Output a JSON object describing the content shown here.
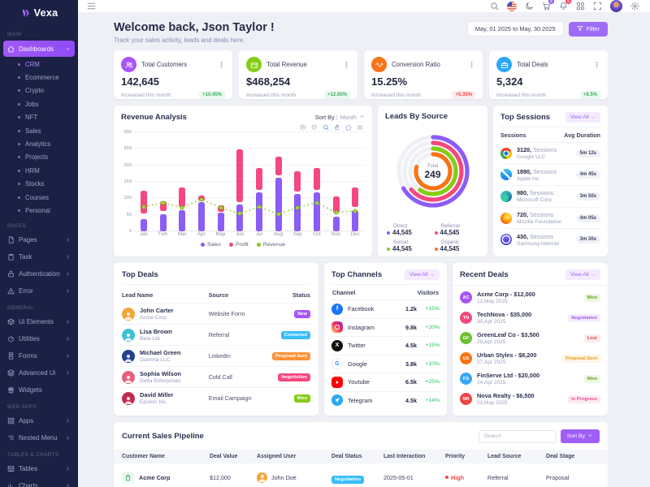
{
  "brand": {
    "name": "Vexa"
  },
  "sidebar": {
    "sections": [
      {
        "label": "MAIN",
        "items": [
          {
            "label": "Dashboards",
            "icon": "home",
            "active": true,
            "chevron": "down",
            "children": [
              "CRM",
              "Ecommerce",
              "Crypto",
              "Jobs",
              "NFT",
              "Sales",
              "Analytics",
              "Projects",
              "HRM",
              "Stocks",
              "Courses",
              "Personal"
            ],
            "active_child": "CRM"
          }
        ]
      },
      {
        "label": "PAGES",
        "items": [
          {
            "label": "Pages",
            "icon": "file",
            "chevron": "right"
          },
          {
            "label": "Task",
            "icon": "clipboard",
            "chevron": "right"
          },
          {
            "label": "Authentication",
            "icon": "lock",
            "chevron": "right"
          },
          {
            "label": "Error",
            "icon": "alert",
            "chevron": "right"
          }
        ]
      },
      {
        "label": "GENERAL",
        "items": [
          {
            "label": "Ui Elements",
            "icon": "box",
            "chevron": "right"
          },
          {
            "label": "Utilities",
            "icon": "gauge",
            "chevron": "right"
          },
          {
            "label": "Forms",
            "icon": "form",
            "chevron": "right"
          },
          {
            "label": "Advanced Ui",
            "icon": "layers",
            "chevron": "right"
          },
          {
            "label": "Widgets",
            "icon": "gift"
          }
        ]
      },
      {
        "label": "WEB APPS",
        "items": [
          {
            "label": "Apps",
            "icon": "apps",
            "chevron": "right"
          },
          {
            "label": "Nested Menu",
            "icon": "nested",
            "chevron": "right"
          }
        ]
      },
      {
        "label": "TABLES & CHARTS",
        "items": [
          {
            "label": "Tables",
            "icon": "table",
            "chevron": "right"
          },
          {
            "label": "Charts",
            "icon": "chart",
            "chevron": "right"
          }
        ]
      }
    ]
  },
  "topbar": {
    "cart_badge": "5",
    "bell_badge": "5"
  },
  "welcome": {
    "title": "Welcome back, Json Taylor !",
    "subtitle": "Track your sales activity, leads and deals here.",
    "date_range": "May, 01 2025 to May, 30 2025",
    "filter_label": "Filter"
  },
  "stats": [
    {
      "title": "Total Customers",
      "value": "142,645",
      "note": "Increased this month",
      "badge": "+10.45%",
      "trend": "up",
      "icon": "users",
      "color": "#a855f7"
    },
    {
      "title": "Total Revenue",
      "value": "$468,254",
      "note": "Increased this month",
      "badge": "+12.65%",
      "trend": "up",
      "icon": "wallet",
      "color": "#84cc16"
    },
    {
      "title": "Conversion Ratio",
      "value": "15.25%",
      "note": "Increased this month",
      "badge": "+5.35%",
      "trend": "down",
      "icon": "wave",
      "color": "#f97316"
    },
    {
      "title": "Total Deals",
      "value": "5,324",
      "note": "Increased this month",
      "badge": "+8.5%",
      "trend": "up",
      "icon": "briefcase",
      "color": "#2aa7f8"
    }
  ],
  "chart_data": [
    {
      "type": "bar",
      "title": "Revenue Analysis",
      "sort_by_label": "Sort By :",
      "sort_by_value": "Month",
      "categories": [
        "Jan",
        "Feb",
        "Mar",
        "Apr",
        "May",
        "Jun",
        "Jul",
        "Aug",
        "Sep",
        "Oct",
        "Nov",
        "Dec"
      ],
      "series": [
        {
          "name": "Sales",
          "type": "bar",
          "color": "#8b5cf6",
          "values": [
            38,
            52,
            65,
            88,
            57,
            82,
            118,
            162,
            112,
            118,
            45,
            65
          ]
        },
        {
          "name": "Profit",
          "type": "rangeBar",
          "color": "#f5487f",
          "ranges": [
            [
              55,
              122
            ],
            [
              62,
              92
            ],
            [
              75,
              132
            ],
            [
              92,
              108
            ],
            [
              60,
              78
            ],
            [
              88,
              248
            ],
            [
              125,
              192
            ],
            [
              170,
              226
            ],
            [
              120,
              182
            ],
            [
              125,
              192
            ],
            [
              55,
              105
            ],
            [
              75,
              132
            ]
          ]
        },
        {
          "name": "Revenue",
          "type": "line",
          "color": "#84cc16",
          "values": [
            75,
            86,
            72,
            97,
            72,
            53,
            75,
            52,
            72,
            87,
            57,
            62
          ]
        }
      ],
      "ylim": [
        0,
        300
      ],
      "yticks": [
        0,
        50,
        100,
        150,
        200,
        250,
        300
      ],
      "grid": true,
      "legend_position": "bottom"
    },
    {
      "type": "radialBar",
      "title": "Leads By Source",
      "center_label": "Total",
      "center_value": "249",
      "series": [
        {
          "name": "Direct",
          "value": "44,545",
          "color": "#8b5cf6",
          "sweep_deg": 240
        },
        {
          "name": "Referral",
          "value": "44,545",
          "color": "#f5487f",
          "sweep_deg": 230
        },
        {
          "name": "Social",
          "value": "44,545",
          "color": "#84cc16",
          "sweep_deg": 215
        },
        {
          "name": "Organic",
          "value": "44,545",
          "color": "#f97316",
          "sweep_deg": 285
        }
      ]
    }
  ],
  "top_sessions": {
    "title": "Top Sessions",
    "view_all": "View All",
    "col_sessions": "Sessions",
    "col_duration": "Avg Duration",
    "rows": [
      {
        "count": "3120,",
        "label": "Sessions",
        "company": "Google LLC",
        "duration": "5m 12s",
        "browser": "chrome"
      },
      {
        "count": "1890,",
        "label": "Sessions",
        "company": "Apple Inc",
        "duration": "4m 45s",
        "browser": "safari"
      },
      {
        "count": "980,",
        "label": "Sessions",
        "company": "Microsoft Corp",
        "duration": "3m 50s",
        "browser": "edge"
      },
      {
        "count": "720,",
        "label": "Sessions",
        "company": "Mozilla Foundation",
        "duration": "4m 05s",
        "browser": "firefox"
      },
      {
        "count": "430,",
        "label": "Sessions",
        "company": "Samsung Internet",
        "duration": "3m 30s",
        "browser": "samsung"
      }
    ]
  },
  "top_deals": {
    "title": "Top Deals",
    "columns": [
      "Lead Name",
      "Source",
      "Status"
    ],
    "rows": [
      {
        "name": "John Carter",
        "company": "Acme Corp",
        "source": "Website Form",
        "status": "New",
        "avatar_bg": "#f0a63a"
      },
      {
        "name": "Lisa Brown",
        "company": "Beta Ltd",
        "source": "Referral",
        "status": "Contacted",
        "avatar_bg": "#3fc1d4"
      },
      {
        "name": "Michael Green",
        "company": "Gamma LLC",
        "source": "LinkedIn",
        "status": "Proposal Sent",
        "avatar_bg": "#23418f"
      },
      {
        "name": "Sophia Wilson",
        "company": "Delta Enterprises",
        "source": "Cold Call",
        "status": "Negotiation",
        "avatar_bg": "#e2607c"
      },
      {
        "name": "David Miller",
        "company": "Epsilon Inc.",
        "source": "Email Campaign",
        "status": "Won",
        "avatar_bg": "#c22a4f"
      }
    ]
  },
  "top_channels": {
    "title": "Top Channels",
    "view_all": "View All",
    "col_channel": "Channel",
    "col_visitors": "Visitors",
    "rows": [
      {
        "name": "Facebook",
        "visitors": "1.2k",
        "pct": "+15%",
        "icon": "facebook"
      },
      {
        "name": "Instagram",
        "visitors": "9.8k",
        "pct": "+20%",
        "icon": "instagram"
      },
      {
        "name": "Twitter",
        "visitors": "4.5k",
        "pct": "+15%",
        "icon": "twitter"
      },
      {
        "name": "Google",
        "visitors": "3.8k",
        "pct": "+10%",
        "icon": "google"
      },
      {
        "name": "Youtube",
        "visitors": "6.5k",
        "pct": "+25%",
        "icon": "youtube"
      },
      {
        "name": "Telegram",
        "visitors": "4.5k",
        "pct": "+14%",
        "icon": "telegram"
      }
    ]
  },
  "recent_deals": {
    "title": "Recent Deals",
    "view_all": "View All",
    "rows": [
      {
        "title": "Acme Corp - $12,000",
        "date": "12,May 2025",
        "status": "Won",
        "initials": "AC",
        "avatar_bg": "#a855f7"
      },
      {
        "title": "TechNova - $35,000",
        "date": "30,Apr 2025",
        "status": "Negotiation",
        "initials": "TN",
        "avatar_bg": "#f5487f"
      },
      {
        "title": "GreenLeaf Co - $3,500",
        "date": "29,Apr 2025",
        "status": "Lost",
        "initials": "GF",
        "avatar_bg": "#6fbe2e"
      },
      {
        "title": "Urban Styles - $8,200",
        "date": "27,Apr 2025",
        "status": "Proposal Sent",
        "initials": "US",
        "avatar_bg": "#f97316"
      },
      {
        "title": "FinServe Ltd - $20,000",
        "date": "24,Apr 2025",
        "status": "Won",
        "initials": "FS",
        "avatar_bg": "#38a7f8"
      },
      {
        "title": "Nova Realty - $6,500",
        "date": "02,May 2025",
        "status": "In Progress",
        "initials": "NR",
        "avatar_bg": "#ef4444"
      }
    ]
  },
  "pipeline": {
    "title": "Current Sales Pipeline",
    "search_placeholder": "Search",
    "sort_by": "Sort By",
    "columns": [
      "Customer Name",
      "Deal Value",
      "Assigned User",
      "Deal Status",
      "Last Interaction",
      "Priority",
      "Lead Source",
      "Deal Stage"
    ],
    "rows": [
      {
        "customer": "Acme Corp",
        "deal_value": "$12,000",
        "assigned_user": "John Doe",
        "deal_status": "Negotiation",
        "status_bg": "#38bdf8",
        "last_interaction": "2025-05-01",
        "priority": "High",
        "priority_color": "#ef4444",
        "lead_source": "Referral",
        "deal_stage": "Proposal"
      }
    ]
  },
  "colors": {
    "accent": "#9f6cf9",
    "sidebar_bg": "#1b2144",
    "status_solid": {
      "New": "#a855f7",
      "Contacted": "#38bdf8",
      "Proposal Sent": "#fb923c",
      "Negotiation": "#f5487f",
      "Won": "#84cc16"
    },
    "status_soft": {
      "Won": {
        "bg": "#eaf8e6",
        "fg": "#65a30d"
      },
      "Negotiation": {
        "bg": "#f5ecfe",
        "fg": "#a855f7"
      },
      "Lost": {
        "bg": "#fdeaec",
        "fg": "#ef4444"
      },
      "Proposal Sent": {
        "bg": "#fff3e6",
        "fg": "#f59e0b"
      },
      "In Progress": {
        "bg": "#fdeaf2",
        "fg": "#ec4899"
      }
    }
  }
}
